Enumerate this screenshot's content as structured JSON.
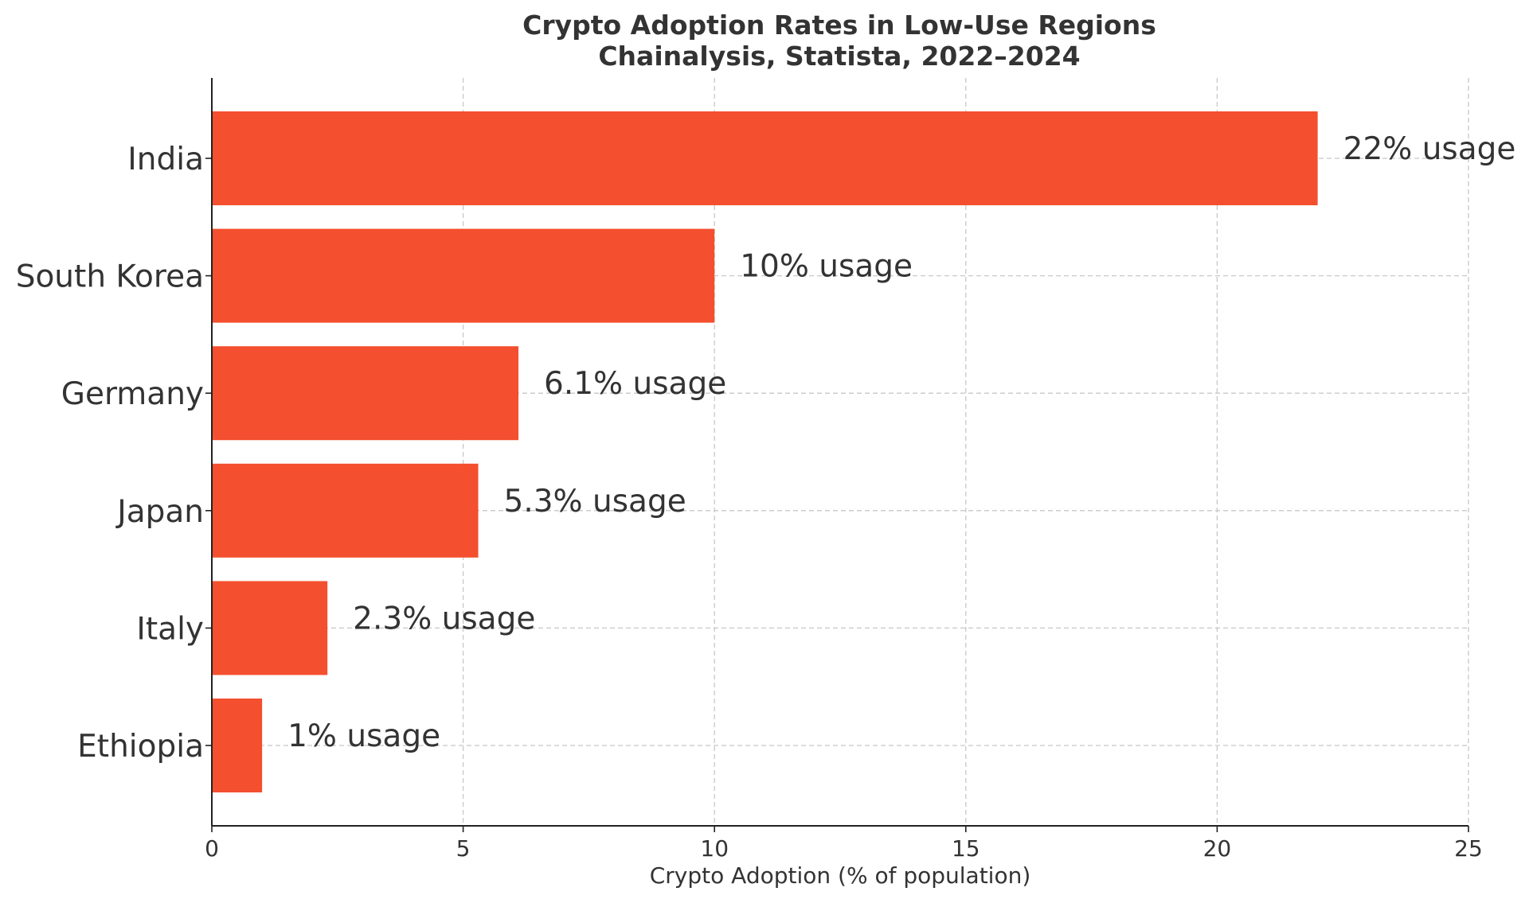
{
  "chart_data": {
    "type": "bar",
    "orientation": "horizontal",
    "title": "Crypto Adoption Rates in Low-Use Regions",
    "subtitle": "Chainalysis, Statista, 2022–2024",
    "xlabel": "Crypto Adoption (% of population)",
    "ylabel": "",
    "xlim": [
      0,
      25
    ],
    "x_ticks": [
      0,
      5,
      10,
      15,
      20,
      25
    ],
    "categories": [
      "India",
      "South Korea",
      "Germany",
      "Japan",
      "Italy",
      "Ethiopia"
    ],
    "values": [
      22,
      10,
      6.1,
      5.3,
      2.3,
      1
    ],
    "data_labels": [
      "22% usage",
      "10% usage",
      "6.1% usage",
      "5.3% usage",
      "2.3% usage",
      "1% usage"
    ],
    "bar_color": "#f44f2f",
    "grid": true,
    "legend": "none"
  }
}
